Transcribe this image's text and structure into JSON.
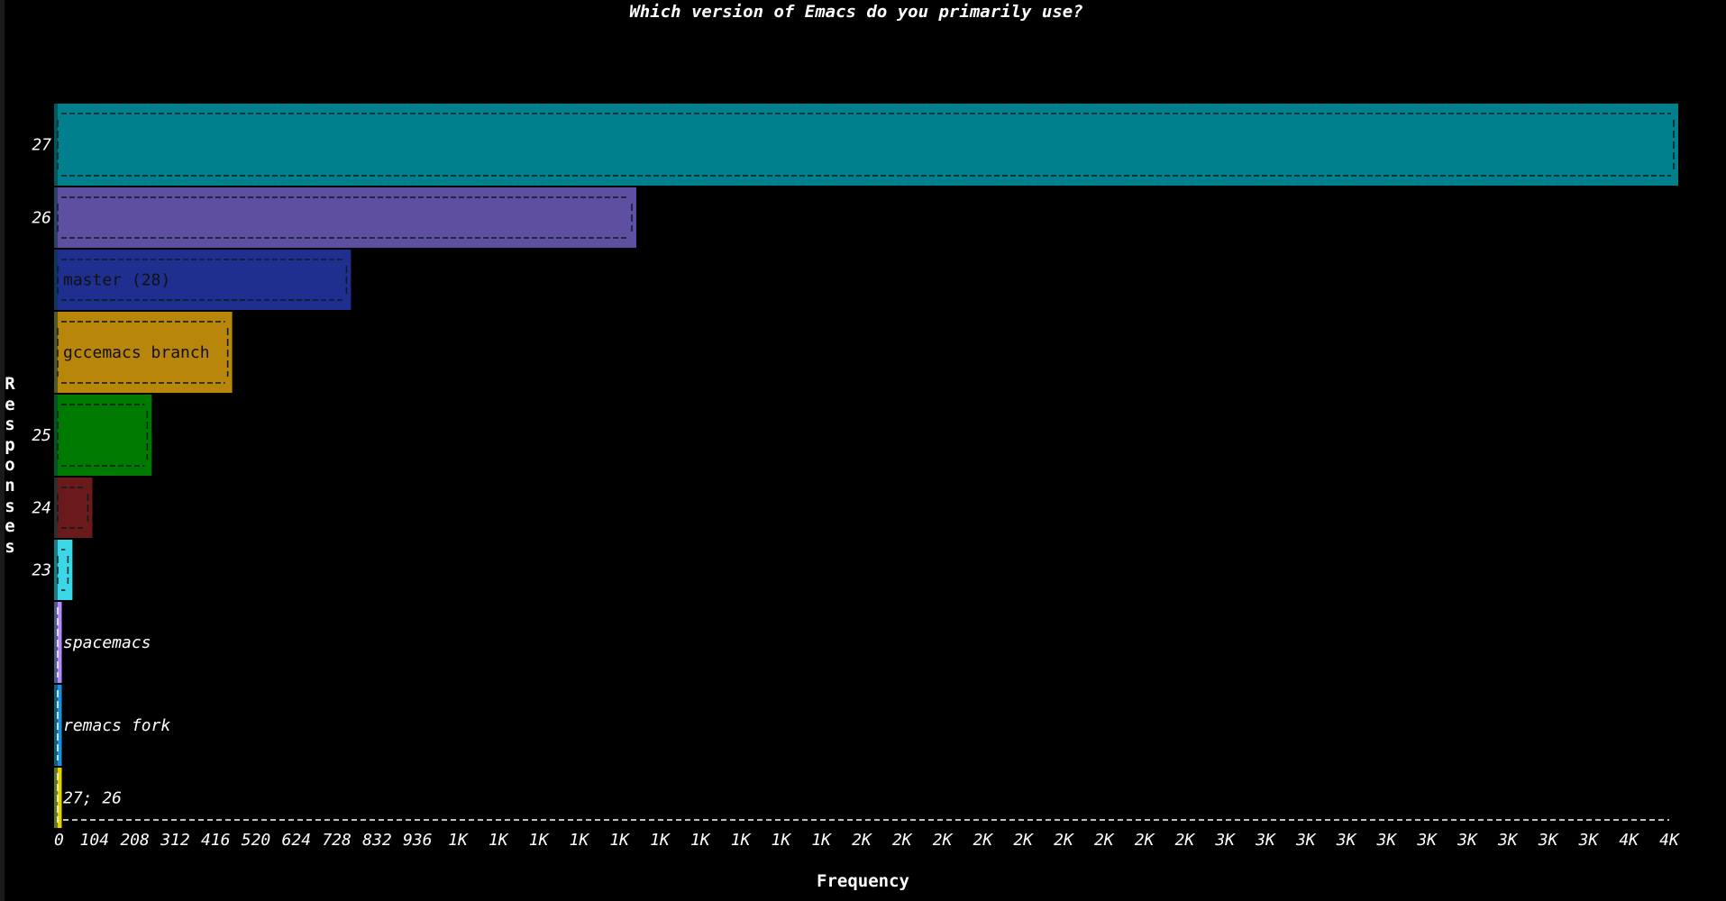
{
  "chart_data": {
    "type": "bar",
    "orientation": "horizontal",
    "title": "Which version of Emacs do you primarily use?",
    "xlabel": "Frequency",
    "ylabel": "Responses",
    "xlim": [
      0,
      4240
    ],
    "x_tick_labels": [
      "0",
      "104",
      "208",
      "312",
      "416",
      "520",
      "624",
      "728",
      "832",
      "936",
      "1K",
      "1K",
      "1K",
      "1K",
      "1K",
      "1K",
      "1K",
      "1K",
      "1K",
      "1K",
      "2K",
      "2K",
      "2K",
      "2K",
      "2K",
      "2K",
      "2K",
      "2K",
      "2K",
      "3K",
      "3K",
      "3K",
      "3K",
      "3K",
      "3K",
      "3K",
      "3K",
      "3K",
      "3K",
      "4K",
      "4K"
    ],
    "bars": [
      {
        "label": "27",
        "value": 4240,
        "color": "#007f8c",
        "inside_label": "",
        "y_tick": "27"
      },
      {
        "label": "26",
        "value": 1520,
        "color": "#5f4fa0",
        "inside_label": "",
        "y_tick": "26"
      },
      {
        "label": "master (28)",
        "value": 775,
        "color": "#1f2f8f",
        "inside_label": "master (28)",
        "y_tick": ""
      },
      {
        "label": "gccemacs branch",
        "value": 465,
        "color": "#b8860b",
        "inside_label": "gccemacs branch",
        "y_tick": ""
      },
      {
        "label": "25",
        "value": 255,
        "color": "#007a00",
        "inside_label": "",
        "y_tick": "25"
      },
      {
        "label": "24",
        "value": 100,
        "color": "#6a1a1a",
        "inside_label": "",
        "y_tick": "24"
      },
      {
        "label": "23",
        "value": 48,
        "color": "#3cd7e6",
        "inside_label": "",
        "y_tick": "23"
      },
      {
        "label": "spacemacs",
        "value": 20,
        "color": "#b48cff",
        "inside_label": "spacemacs",
        "y_tick": ""
      },
      {
        "label": "remacs fork",
        "value": 20,
        "color": "#1e90e0",
        "inside_label": "remacs fork",
        "y_tick": ""
      },
      {
        "label": "27; 26",
        "value": 20,
        "color": "#e6d200",
        "inside_label": "27; 26",
        "y_tick": ""
      }
    ]
  }
}
